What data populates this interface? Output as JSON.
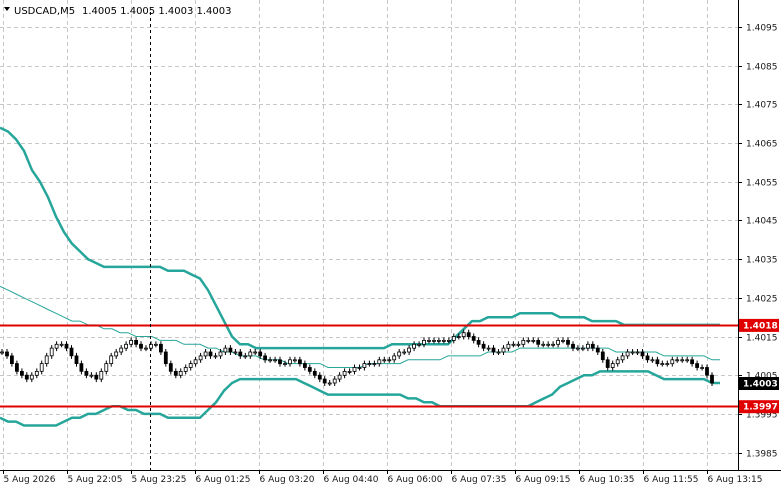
{
  "header": {
    "symbol": "USDCAD,M5",
    "quote": "1.4005 1.4005 1.4003 1.4003"
  },
  "colors": {
    "background": "#ffffff",
    "grid": "#c8c8c8",
    "band": "#26a69a",
    "level_line": "#e00000",
    "candle": "#000000",
    "price_tag_bg": "#000000",
    "level_tag_bg": "#e00000"
  },
  "chart_data": {
    "type": "line",
    "y_axis": {
      "ticks": [
        "1.4095",
        "1.4085",
        "1.4075",
        "1.4065",
        "1.4055",
        "1.4045",
        "1.4035",
        "1.4025",
        "1.4015",
        "1.4005",
        "1.3995",
        "1.3985"
      ],
      "ylim": [
        1.39805,
        1.4102
      ]
    },
    "x_axis": {
      "ticks": [
        "5 Aug 2026",
        "5 Aug 22:05",
        "5 Aug 23:25",
        "6 Aug 01:25",
        "6 Aug 03:20",
        "6 Aug 04:40",
        "6 Aug 06:00",
        "6 Aug 07:35",
        "6 Aug 09:15",
        "6 Aug 10:35",
        "6 Aug 11:55",
        "6 Aug 13:15"
      ]
    },
    "grid": true,
    "price_levels": [
      {
        "name": "resistance",
        "value": 1.4018,
        "label": "1.4018"
      },
      {
        "name": "support",
        "value": 1.3997,
        "label": "1.3997"
      }
    ],
    "current_price": {
      "value": 1.4003,
      "label": "1.4003"
    },
    "bands": {
      "x": [
        0,
        8,
        16,
        24,
        32,
        40,
        48,
        56,
        64,
        72,
        80,
        88,
        96,
        104,
        112,
        120,
        128,
        136,
        144,
        152,
        160,
        168,
        176,
        184,
        192,
        200,
        208,
        216,
        224,
        232,
        240,
        248,
        256,
        264,
        272,
        280,
        288,
        296,
        304,
        312,
        320,
        328,
        336,
        344,
        352,
        360,
        368,
        376,
        384,
        392,
        400,
        408,
        416,
        424,
        432,
        440,
        448,
        456,
        464,
        472,
        480,
        488,
        496,
        504,
        512,
        520,
        528,
        536,
        544,
        552,
        560,
        568,
        576,
        584,
        592,
        600,
        608,
        616,
        624,
        632,
        640,
        648,
        656,
        664,
        672,
        680,
        688,
        696,
        704,
        712,
        720
      ],
      "upper": [
        1.4069,
        1.4068,
        1.4066,
        1.4063,
        1.4058,
        1.4055,
        1.4051,
        1.4046,
        1.4042,
        1.4039,
        1.4037,
        1.4035,
        1.4034,
        1.4033,
        1.4033,
        1.4033,
        1.4033,
        1.4033,
        1.4033,
        1.4033,
        1.4033,
        1.4032,
        1.4032,
        1.4032,
        1.4031,
        1.403,
        1.4027,
        1.4023,
        1.4019,
        1.4015,
        1.4013,
        1.4013,
        1.4012,
        1.4012,
        1.4012,
        1.4012,
        1.4012,
        1.4012,
        1.4012,
        1.4012,
        1.4012,
        1.4012,
        1.4012,
        1.4012,
        1.4012,
        1.4012,
        1.4012,
        1.4012,
        1.4012,
        1.4013,
        1.4013,
        1.4013,
        1.4013,
        1.4013,
        1.4013,
        1.4013,
        1.4013,
        1.4015,
        1.4017,
        1.4019,
        1.4019,
        1.402,
        1.402,
        1.402,
        1.402,
        1.4021,
        1.4021,
        1.4021,
        1.4021,
        1.4021,
        1.402,
        1.402,
        1.402,
        1.402,
        1.4019,
        1.4019,
        1.4019,
        1.4019,
        1.4018,
        1.4018,
        1.4018,
        1.4018,
        1.4018,
        1.4018,
        1.4018,
        1.4018,
        1.4018,
        1.4018,
        1.4018,
        1.4018,
        1.4018
      ],
      "middle": [
        1.4028,
        1.4027,
        1.4026,
        1.4025,
        1.4024,
        1.4023,
        1.4022,
        1.4021,
        1.402,
        1.4019,
        1.4019,
        1.4018,
        1.4018,
        1.4017,
        1.4017,
        1.4016,
        1.4016,
        1.4015,
        1.4015,
        1.4015,
        1.4014,
        1.4014,
        1.4014,
        1.4013,
        1.4013,
        1.4013,
        1.4012,
        1.4012,
        1.4011,
        1.4011,
        1.401,
        1.401,
        1.401,
        1.4009,
        1.4009,
        1.4009,
        1.4008,
        1.4008,
        1.4008,
        1.4008,
        1.4008,
        1.4007,
        1.4007,
        1.4007,
        1.4007,
        1.4007,
        1.4008,
        1.4008,
        1.4008,
        1.4008,
        1.4008,
        1.4009,
        1.4009,
        1.4009,
        1.4009,
        1.4009,
        1.401,
        1.401,
        1.401,
        1.401,
        1.401,
        1.4011,
        1.4011,
        1.4011,
        1.4011,
        1.4012,
        1.4012,
        1.4012,
        1.4012,
        1.4012,
        1.4012,
        1.4012,
        1.4012,
        1.4012,
        1.4012,
        1.4012,
        1.4012,
        1.4011,
        1.4011,
        1.4011,
        1.4011,
        1.4011,
        1.4011,
        1.401,
        1.401,
        1.401,
        1.401,
        1.401,
        1.401,
        1.4009,
        1.4009
      ],
      "lower": [
        1.3994,
        1.3993,
        1.3993,
        1.3992,
        1.3992,
        1.3992,
        1.3992,
        1.3992,
        1.3993,
        1.3994,
        1.3994,
        1.3995,
        1.3995,
        1.3996,
        1.3997,
        1.3997,
        1.3996,
        1.3996,
        1.3995,
        1.3995,
        1.3995,
        1.3994,
        1.3994,
        1.3994,
        1.3994,
        1.3994,
        1.3996,
        1.3998,
        1.4001,
        1.4003,
        1.4004,
        1.4004,
        1.4004,
        1.4004,
        1.4004,
        1.4004,
        1.4004,
        1.4004,
        1.4003,
        1.4002,
        1.4001,
        1.4,
        1.4,
        1.4,
        1.4,
        1.4,
        1.4,
        1.4,
        1.4,
        1.4,
        1.4,
        1.3999,
        1.3999,
        1.3998,
        1.3998,
        1.3997,
        1.3997,
        1.3997,
        1.3997,
        1.3997,
        1.3997,
        1.3997,
        1.3997,
        1.3997,
        1.3997,
        1.3997,
        1.3997,
        1.3998,
        1.3999,
        1.4,
        1.4002,
        1.4003,
        1.4004,
        1.4005,
        1.4005,
        1.4006,
        1.4006,
        1.4006,
        1.4006,
        1.4006,
        1.4006,
        1.4006,
        1.4005,
        1.4004,
        1.4004,
        1.4004,
        1.4004,
        1.4004,
        1.4004,
        1.4003,
        1.4003
      ]
    },
    "candles": [
      1.4011,
      1.401,
      1.4008,
      1.4006,
      1.4005,
      1.4004,
      1.4005,
      1.4006,
      1.4008,
      1.401,
      1.4012,
      1.4013,
      1.4013,
      1.4012,
      1.401,
      1.4008,
      1.4006,
      1.4005,
      1.4005,
      1.4004,
      1.4006,
      1.4008,
      1.401,
      1.4011,
      1.4012,
      1.4013,
      1.4014,
      1.4013,
      1.4012,
      1.4012,
      1.4013,
      1.4013,
      1.4011,
      1.4008,
      1.4006,
      1.4005,
      1.4006,
      1.4007,
      1.4008,
      1.4009,
      1.401,
      1.4011,
      1.401,
      1.401,
      1.4011,
      1.4012,
      1.4011,
      1.4011,
      1.401,
      1.401,
      1.4011,
      1.4011,
      1.401,
      1.4009,
      1.4009,
      1.4009,
      1.4008,
      1.4008,
      1.4009,
      1.4009,
      1.4008,
      1.4007,
      1.4006,
      1.4005,
      1.4004,
      1.4003,
      1.4003,
      1.4004,
      1.4005,
      1.4006,
      1.4006,
      1.4007,
      1.4007,
      1.4008,
      1.4008,
      1.4008,
      1.4009,
      1.4009,
      1.4009,
      1.401,
      1.4011,
      1.4011,
      1.4012,
      1.4013,
      1.4013,
      1.4014,
      1.4014,
      1.4014,
      1.4014,
      1.4014,
      1.4014,
      1.4015,
      1.4015,
      1.4016,
      1.4015,
      1.4014,
      1.4013,
      1.4012,
      1.4012,
      1.4011,
      1.4011,
      1.4012,
      1.4013,
      1.4013,
      1.4013,
      1.4014,
      1.4014,
      1.4014,
      1.4013,
      1.4013,
      1.4013,
      1.4013,
      1.4014,
      1.4014,
      1.4013,
      1.4012,
      1.4012,
      1.4012,
      1.4013,
      1.4012,
      1.4011,
      1.4009,
      1.4007,
      1.4008,
      1.4009,
      1.401,
      1.4011,
      1.4011,
      1.4011,
      1.401,
      1.4009,
      1.4009,
      1.4008,
      1.4008,
      1.4008,
      1.4009,
      1.4009,
      1.4009,
      1.4009,
      1.4008,
      1.4007,
      1.4007,
      1.4005,
      1.4003
    ]
  }
}
